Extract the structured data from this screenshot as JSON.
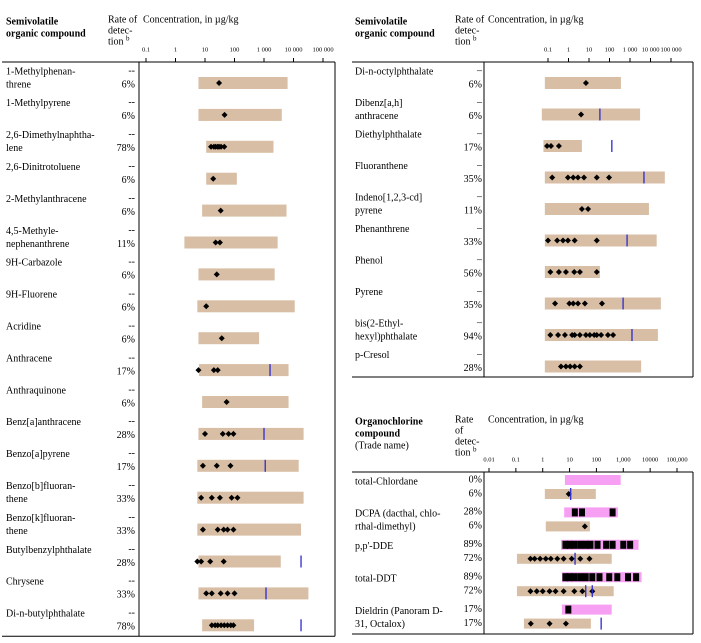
{
  "left": {
    "header": {
      "compound": [
        "Semivolatile",
        "organic compound"
      ],
      "rate": [
        "Rate of",
        "detec-",
        "tion"
      ],
      "rate_note": "b",
      "concentration": "Concentration, in µg/kg"
    },
    "xlim": [
      0.1,
      100000
    ],
    "xticks": [
      0.1,
      1,
      10,
      100,
      {
        "value": 1000,
        "label": "1 000"
      },
      {
        "value": 10000,
        "label": "10 000"
      },
      {
        "value": 100000,
        "label": "100 000"
      }
    ],
    "rows": [
      {
        "name": [
          "1-Methylphenan-",
          "threne"
        ],
        "rate_top": "--",
        "rate": "6%",
        "range": [
          6,
          6300
        ],
        "detections": [
          30
        ]
      },
      {
        "name": [
          "1-Methylpyrene"
        ],
        "rate_top": "--",
        "rate": "6%",
        "range": [
          6,
          4000
        ],
        "detections": [
          46
        ]
      },
      {
        "name": [
          "2,6-Dimethylnaphtha-",
          "lene"
        ],
        "rate_top": "--",
        "rate": "78%",
        "range": [
          11,
          2100
        ],
        "detections": [
          16,
          20,
          23,
          27,
          30,
          35,
          45
        ]
      },
      {
        "name": [
          "2,6-Dinitrotoluene"
        ],
        "rate_top": "--",
        "rate": "6%",
        "range": [
          11,
          120
        ],
        "detections": [
          19
        ]
      },
      {
        "name": [
          "2-Methylanthracene"
        ],
        "rate_top": "--",
        "rate": "6%",
        "range": [
          8,
          5800
        ],
        "detections": [
          34
        ]
      },
      {
        "name": [
          "4,5-Methyle-",
          "nephenanthrene"
        ],
        "rate_top": "--",
        "rate": "11%",
        "range": [
          2,
          2900
        ],
        "detections": [
          23,
          32
        ]
      },
      {
        "name": [
          "9H-Carbazole"
        ],
        "rate_top": "--",
        "rate": "6%",
        "range": [
          6,
          2300
        ],
        "detections": [
          25
        ]
      },
      {
        "name": [
          "9H-Fluorene"
        ],
        "rate_top": "--",
        "rate": "6%",
        "range": [
          5.5,
          11000
        ],
        "detections": [
          11
        ]
      },
      {
        "name": [
          "Acridine"
        ],
        "rate_top": "--",
        "rate": "6%",
        "range": [
          6,
          680
        ],
        "detections": [
          37
        ]
      },
      {
        "name": [
          "Anthracene"
        ],
        "rate_top": "--",
        "rate": "17%",
        "range": [
          6.3,
          6800
        ],
        "detections": [
          6,
          20,
          27
        ],
        "guidelines": [
          1600
        ]
      },
      {
        "name": [
          "Anthraquinone"
        ],
        "rate_top": "--",
        "rate": "6%",
        "range": [
          8,
          6800
        ],
        "detections": [
          54
        ]
      },
      {
        "name": [
          "Benz[a]anthracene"
        ],
        "rate_top": "--",
        "rate": "28%",
        "range": [
          6,
          22000
        ],
        "detections": [
          10,
          40,
          63,
          92
        ],
        "guidelines": [
          1000
        ]
      },
      {
        "name": [
          "Benzo[a]pyrene"
        ],
        "rate_top": "--",
        "rate": "17%",
        "range": [
          5.5,
          15000
        ],
        "detections": [
          8.5,
          25,
          73
        ],
        "guidelines": [
          1100
        ]
      },
      {
        "name": [
          "Benzo[b]fluoran-",
          "thene"
        ],
        "rate_top": "--",
        "rate": "33%",
        "range": [
          5.5,
          22000
        ],
        "detections": [
          7.4,
          17,
          32,
          80,
          126
        ]
      },
      {
        "name": [
          "Benzo[k]fluoran-",
          "thene"
        ],
        "rate_top": "--",
        "rate": "33%",
        "range": [
          5.5,
          18000
        ],
        "detections": [
          8.5,
          27,
          43,
          58,
          92
        ]
      },
      {
        "name": [
          "Butylbenzylphthalate"
        ],
        "rate_top": "--",
        "rate": "28%",
        "range": [
          6,
          3700
        ],
        "detections": [
          5.5,
          7.4,
          15,
          43
        ],
        "guidelines": [
          18000
        ]
      },
      {
        "name": [
          "Chrysene"
        ],
        "rate_top": "--",
        "rate": "33%",
        "range": [
          6,
          32000
        ],
        "detections": [
          11,
          17,
          34,
          58,
          100
        ],
        "guidelines": [
          1170
        ]
      },
      {
        "name": [
          "Di-n-butylphthalate"
        ],
        "rate_top": "--",
        "rate": "78%",
        "range": [
          8,
          460
        ],
        "detections": [
          17,
          22,
          27,
          35,
          45,
          58,
          75,
          92
        ],
        "guidelines": [
          18000
        ]
      }
    ]
  },
  "right": {
    "header": {
      "compound": [
        "Semivolatile",
        "organic compound"
      ],
      "rate": [
        "Rate of",
        "detec-",
        "tion"
      ],
      "rate_note": "b",
      "concentration": "Concentration, in µg/kg"
    },
    "xlim": [
      0.1,
      100000
    ],
    "xticks": [
      0.1,
      1,
      10,
      100,
      {
        "value": 1000,
        "label": "1 000"
      },
      {
        "value": 10000,
        "label": "10 000"
      },
      {
        "value": 100000,
        "label": "100 000"
      }
    ],
    "rows": [
      {
        "name": [
          "Di-n-octylphthalate"
        ],
        "rate_top": "–",
        "rate": "6%",
        "range": [
          0.07,
          360
        ],
        "detections": [
          7.1
        ]
      },
      {
        "name": [
          "Dibenz[a,h]",
          "anthracene"
        ],
        "rate_top": "–",
        "rate": "6%",
        "range": [
          0.05,
          3100
        ],
        "detections": [
          4.1
        ],
        "guidelines": [
          34
        ]
      },
      {
        "name": [
          "Diethylphthalate"
        ],
        "rate_top": "–",
        "rate": "17%",
        "range": [
          0.06,
          4.5
        ],
        "detections": [
          0.09,
          0.14,
          0.34
        ],
        "guidelines": [
          130
        ]
      },
      {
        "name": [
          "Fluoranthene"
        ],
        "rate_top": "–",
        "rate": "35%",
        "range": [
          0.07,
          50000
        ],
        "detections": [
          0.16,
          0.94,
          1.7,
          2.9,
          5.7,
          24,
          95
        ],
        "guidelines": [
          4800
        ]
      },
      {
        "name": [
          "Indeno[1,2,3-cd]",
          "pyrene"
        ],
        "rate_top": "–",
        "rate": "11%",
        "range": [
          0.07,
          8400
        ],
        "detections": [
          4.5,
          9
        ]
      },
      {
        "name": [
          "Phenanthrene"
        ],
        "rate_top": "–",
        "rate": "33%",
        "range": [
          0.07,
          20000
        ],
        "detections": [
          0.1,
          0.28,
          0.54,
          0.94,
          2,
          24
        ],
        "guidelines": [
          720
        ]
      },
      {
        "name": [
          "Phenol"
        ],
        "rate_top": "–",
        "rate": "56%",
        "range": [
          0.07,
          34
        ],
        "detections": [
          0.13,
          0.34,
          0.75,
          1.9,
          3.6,
          24
        ]
      },
      {
        "name": [
          "Pyrene"
        ],
        "rate_top": "–",
        "rate": "35%",
        "range": [
          0.07,
          32000
        ],
        "detections": [
          0.22,
          1.1,
          1.7,
          2.9,
          6.3,
          43
        ],
        "guidelines": [
          460
        ]
      },
      {
        "name": [
          "bis(2-Ethyl-",
          "hexyl)phthalate"
        ],
        "rate_top": "–",
        "rate": "94%",
        "range": [
          0.07,
          23000
        ],
        "detections": [
          0.13,
          0.31,
          0.67,
          1.5,
          2,
          3.6,
          7.1,
          11,
          18,
          24,
          39,
          84,
          150
        ],
        "guidelines": [
          1250
        ]
      },
      {
        "name": [
          "p-Cresol"
        ],
        "rate_top": "–",
        "rate": "28%",
        "range": [
          0.07,
          3500
        ],
        "detections": [
          0.43,
          0.75,
          1.2,
          2,
          3.6
        ]
      }
    ]
  },
  "bottom": {
    "header": {
      "compound": [
        "Organochlorine",
        "compound"
      ],
      "trade": "(Trade name)",
      "rate": [
        "Rate",
        "of",
        "detec-",
        "tion"
      ],
      "rate_note": "b",
      "concentration": "Concentration, in µg/kg"
    },
    "xlim": [
      0.01,
      100000
    ],
    "xticks": [
      0.01,
      0.1,
      1,
      10,
      100,
      {
        "value": 1000,
        "label": "1,000"
      },
      10000,
      {
        "value": 100000,
        "label": "100,000"
      }
    ],
    "rows": [
      {
        "name": [
          "total-Chlordane"
        ],
        "rates": [
          "0%",
          "6%"
        ],
        "pink_range": [
          6.7,
          800
        ],
        "pink_detections": [],
        "range": [
          1.2,
          95
        ],
        "detections": [
          9.3
        ],
        "guidelines": [
          11
        ]
      },
      {
        "name": [
          "DCPA (dacthal, chlo-",
          "rthal-dimethyl)"
        ],
        "rates": [
          "28%",
          "6%"
        ],
        "pink_range": [
          6.3,
          630
        ],
        "pink_detections": [
          15.7,
          29,
          400
        ],
        "range": [
          1.3,
          57
        ],
        "detections": [
          37
        ]
      },
      {
        "name": [
          "p,p'-DDE"
        ],
        "rates": [
          "89%",
          "72%"
        ],
        "pink_range": [
          4.8,
          3700
        ],
        "pink_detections": [
          7,
          10,
          15,
          25,
          40,
          60,
          110,
          230,
          400,
          1000,
          1800
        ],
        "range": [
          0.11,
          370
        ],
        "detections": [
          0.35,
          0.5,
          0.8,
          1.3,
          2,
          3.5,
          6,
          12,
          25,
          55
        ],
        "guidelines": [
          16
        ]
      },
      {
        "name": [
          "total-DDT"
        ],
        "rates": [
          "89%",
          "72%"
        ],
        "pink_range": [
          5.2,
          4800
        ],
        "pink_detections": [
          7,
          10,
          15,
          25,
          40,
          70,
          130,
          300,
          600,
          1500,
          3000
        ],
        "range": [
          0.11,
          440
        ],
        "detections": [
          0.35,
          0.6,
          1,
          1.8,
          3,
          6,
          15,
          30,
          70
        ],
        "guidelines": [
          40,
          70
        ]
      },
      {
        "name": [
          "Dieldrin (Panoram D-",
          "31, Octalox)"
        ],
        "rates": [
          "17%",
          "17%"
        ],
        "pink_range": [
          5.2,
          370
        ],
        "pink_detections": [
          9
        ],
        "range": [
          0.2,
          62
        ],
        "detections": [
          0.36,
          1.8,
          7.3
        ],
        "guidelines": [
          150
        ]
      }
    ]
  }
}
